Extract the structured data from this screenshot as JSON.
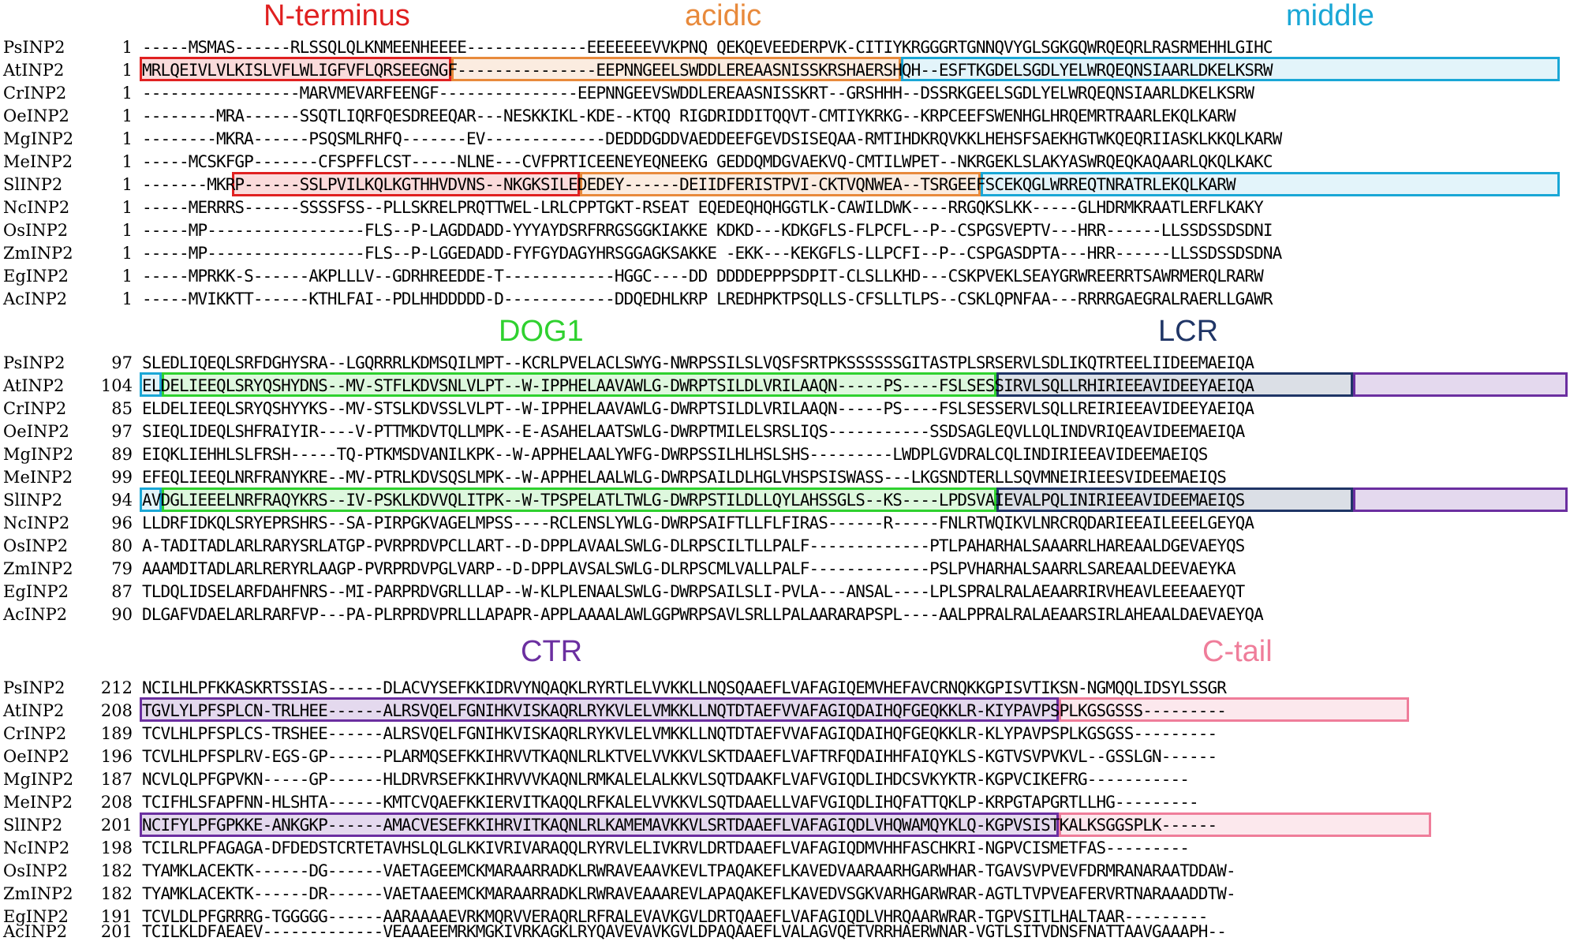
{
  "colors": {
    "N-terminus": "#e02020",
    "acidic": "#e88a3c",
    "middle": "#1aa7d6",
    "DOG1": "#2fd12f",
    "LCR": "#1f3566",
    "CTR": "#6b2fa0",
    "C-tail": "#ef7d9a"
  },
  "blocks": [
    {
      "regions": [
        "N-terminus",
        "acidic",
        "middle"
      ],
      "rows": [
        {
          "name": "PsINP2",
          "pos": "1",
          "seq": "-----MSMAS------RLSSQLQLKNMEENHEEEE-------------EEEEEEEVVKPNQ QEKQEVEEDERPVK-CITIYKRGGGRTGNNQVYGLSGKGQWRQEQRLRASRMEHHLGIHC"
        },
        {
          "name": "AtINP2",
          "pos": "1",
          "seq": "MRLQEIVLVLKISLVFLWLIGFVFLQRSEEGNGF---------------EEPNNGEELSWDDLEREAASNISSKRSHAERSHQH--ESFTKGDELSGDLYELWRQEQNSIAARLDKELKSRW"
        },
        {
          "name": "CrINP2",
          "pos": "1",
          "seq": "-----------------MARVMEVARFEENGF---------------EEPNNGEEVSWDDLEREAASNISSKRT--GRSHHH--DSSRKGEELSGDLYELWRQEQNSIAARLDKELKSRW"
        },
        {
          "name": "OeINP2",
          "pos": "1",
          "seq": "--------MRA------SSQTLIQRFQESDREEQAR---NESKKIKL-KDE--KTQQ RIGDRIDDITQQVT-CMTIYKRKG--KRPCEEFSWENHGLHRQEMRTRAARLEKQLKARW"
        },
        {
          "name": "MgINP2",
          "pos": "1",
          "seq": "--------MKRA------PSQSMLRHFQ-------EV-------------DEDDDGDDVAEDDEEFGEVDSISEQAA-RMTIHDKRQVKKLHEHSFSAEKHGTWKQEQRIIASKLKKQLKARW"
        },
        {
          "name": "MeINP2",
          "pos": "1",
          "seq": "-----MCSKFGP-------CFSPFFLCST-----NLNE---CVFPRTICEENEYEQNEEKG GEDDQMDGVAEKVQ-CMTILWPET--NKRGEKLSLAKYASWRQEQKAQAARLQKQLKAKC"
        },
        {
          "name": "SlINP2",
          "pos": "1",
          "seq": "-------MKRP------SSLPVILKQLKGTHHVDVNS--NKGKSILEDEDEY------DEIIDFERISTPVI-CKTVQNWEA--TSRGEEFSCEKQGLWRREQTNRATRLEKQLKARW"
        },
        {
          "name": "NcINP2",
          "pos": "1",
          "seq": "-----MERRRS------SSSSFSS--PLLSKRELPRQTTWEL-LRLCPPTGKT-RSEAT EQEDEQHQHGGTLK-CAWILDWK----RRGQKSLKK-----GLHDRMKRAATLERFLKAKY"
        },
        {
          "name": "OsINP2",
          "pos": "1",
          "seq": "-----MP-----------------FLS--P-LAGDDADD-YYYAYDSRFRRGSGGKIAKKE KDKD---KDKGFLS-FLPCFL--P--CSPGSVEPTV---HRR------LLSSDSSDSDNI"
        },
        {
          "name": "ZmINP2",
          "pos": "1",
          "seq": "-----MP-----------------FLS--P-LGGEDADD-FYFGYDAGYHRSGGAGKSAKKE -EKK---KEKGFLS-LLPCFI--P--CSPGASDPTA---HRR------LLSSDSSDSDNA"
        },
        {
          "name": "EgINP2",
          "pos": "1",
          "seq": "-----MPRKK-S------AKPLLLV--GDRHREEDDE-T------------HGGC----DD DDDDEPPPSDPIT-CLSLLKHD---CSKPVEKLSEAYGRWREERRTSAWRMERQLRARW"
        },
        {
          "name": "AcINP2",
          "pos": "1",
          "seq": "-----MVIKKTT------KTHLFAI--PDLHHDDDDD-D------------DDQEDHLKRP LREDHPKTPSQLLS-CFSLLTLPS--CSKLQPNFAA---RRRRGAEGRALRAERLLGAWR"
        }
      ]
    },
    {
      "regions": [
        "DOG1",
        "LCR"
      ],
      "rows": [
        {
          "name": "PsINP2",
          "pos": "97",
          "seq": "SLEDLIQEQLSRFDGHYSRA--LGQRRRLKDMSQILMPT--KCRLPVELACLSWYG-NWRPSSILSLVQSFSRTPKSSSSSSGITASTPLSRSERVLSDLIKQTRTEELIIDEEMAEIQA"
        },
        {
          "name": "AtINP2",
          "pos": "104",
          "seq": "ELDELIEEQLSRYQSHYDNS--MV-STFLKDVSNLVLPT--W-IPPHELAAVAWLG-DWRPTSILDLVRILAAQN-----PS----FSLSESSIRVLSQLLRHIRIEEAVIDEEYAEIQA"
        },
        {
          "name": "CrINP2",
          "pos": "85",
          "seq": "ELDELIEEQLSRYQSHYYKS--MV-STSLKDVSSLVLPT--W-IPPHELAAVAWLG-DWRPTSILDLVRILAAQN-----PS----FSLSESSERVLSQLLREIRIEEAVIDEEYAEIQA"
        },
        {
          "name": "OeINP2",
          "pos": "97",
          "seq": "SIEQLIDEQLSHFRAIYIR----V-PTTMKDVTQLLMPK--E-ASAHELAATSWLG-DWRPTMILELSRSLIQS-----------SSDSAGLEQVLLQLINDVRIQEAVIDEEMAEIQA"
        },
        {
          "name": "MgINP2",
          "pos": "89",
          "seq": "EIQKLIEHHLSLFRSH-----TQ-PTKMSDVANILKPK--W-APPHELAALYWFG-DWRPSSILHLHSLSHS---------LWDPLGVDRALCQLINDIRIEEAVIDEEMAEIQS"
        },
        {
          "name": "MeINP2",
          "pos": "99",
          "seq": "EFEQLIEEQLNRFRANYKRE--MV-PTRLKDVSQSLMPK--W-APPHELAALWLG-DWRPSAILDLHGLVHSPSISWASS---LKGSNDTERLLSQVMNEIRIEESVIDEEMAEIQS"
        },
        {
          "name": "SlINP2",
          "pos": "94",
          "seq": "AVDGLIEEELNRFRAQYKRS--IV-PSKLKDVVQLITPK--W-TPSPELATLTWLG-DWRPSTILDLLQYLAHSSGLS--KS----LPDSVAIEVALPQLINIRIEEAVIDEEMAEIQS"
        },
        {
          "name": "NcINP2",
          "pos": "96",
          "seq": "LLDRFIDKQLSRYEPRSHRS--SA-PIRPGKVAGELMPSS----RCLENSLYWLG-DWRPSAIFTLLFLFIRAS------R-----FNLRTWQIKVLNRCRQDARIEEAILEEELGEYQA"
        },
        {
          "name": "OsINP2",
          "pos": "80",
          "seq": "A-TADITADLARLRARYSRLATGP-PVRPRDVPCLLART--D-DPPLAVAALSWLG-DLRPSCILTLLPALF-------------PTLPAHARHALSAAARRLHAREAALDGEVAEYQS"
        },
        {
          "name": "ZmINP2",
          "pos": "79",
          "seq": "AAAMDITADLARLRERYRLAAGP-PVRPRDVPGLVARP--D-DPPLAVSALSWLG-DLRPSCMLVALLPALF-------------PSLPVHARHALSAARRLSAREAALDEEVAEYKA"
        },
        {
          "name": "EgINP2",
          "pos": "87",
          "seq": "TLDQLIDSELARFDAHFNRS--MI-PARPRDVGRLLLAP--W-KLPLENAALSWLG-DWRPSAILSLI-PVLA---ANSAL----LPLSPRALRALAEAARRIRVHEAVLEEEAAEYQT"
        },
        {
          "name": "AcINP2",
          "pos": "90",
          "seq": "DLGAFVDAELARLRARFVP---PA-PLRPRDVPRLLLAPAPR-APPLAAAALAWLGGPWRPSAVLSRLLPALAARARAPSPL----AALPPRALRALAEAARSIRLAHEAALDAEVAEYQA"
        }
      ]
    },
    {
      "regions": [
        "CTR",
        "C-tail"
      ],
      "rows": [
        {
          "name": "PsINP2",
          "pos": "212",
          "seq": "NCILHLPFKKASKRTSSIAS------DLACVYSEFKKIDRVYNQAQKLRYRTLELVVKKLLNQSQAAEFLVAFAGIQEMVHEFAVCRNQKKGPISVTIKSN-NGMQQLIDSYLSSGR"
        },
        {
          "name": "AtINP2",
          "pos": "208",
          "seq": "TGVLYLPFSPLCN-TRLHEE------ALRSVQELFGNIHKVISKAQRLRYKVLELVMKKLLNQTDTAEFVVAFAGIQDAIHQFGEQKKLR-KIYPAVPSPLKGSGSSS---------"
        },
        {
          "name": "CrINP2",
          "pos": "189",
          "seq": "TCVLHLPFSPLCS-TRSHEE------ALRSVQELFGNIHKVISKAQRLRYKVLELVMKKLLNQTDTAEFVVAFAGIQDAIHQFGEQKKLR-KLYPAVPSPLKGSGSS---------"
        },
        {
          "name": "OeINP2",
          "pos": "196",
          "seq": "TCVLHLPFSPLRV-EGS-GP------PLARMQSEFKKIHRVVTKAQNLRLKTVELVVKKVLSKTDAAEFLVAFTRFQDAIHHFAIQYKLS-KGTVSVPVKVL--GSSLGN------"
        },
        {
          "name": "MgINP2",
          "pos": "187",
          "seq": "NCVLQLPFGPVKN-----GP------HLDRVRSEFKKIHRVVVKAQNLRMKALELALKKVLSQTDAAKFLVAFVGIQDLIHDCSVKYKTR-KGPVCIKEFRG-----------"
        },
        {
          "name": "MeINP2",
          "pos": "208",
          "seq": "TCIFHLSFAPFNN-HLSHTA------KMTCVQAEFKKIERVITKAQQLRFKALELVVKKVLSQTDAAELLVAFVGIQDLIHQFATTQKLP-KRPGTAPGRTLLHG---------"
        },
        {
          "name": "SlINP2",
          "pos": "201",
          "seq": "NCIFYLPFGPKKE-ANKGKP------AMACVESEFKKIHRVITKAQNLRLKAMEMAVKKVLSRTDAAEFLVAFAGIQDLVHQWAMQYKLQ-KGPVSISTKALKSGGSPLK------"
        },
        {
          "name": "NcINP2",
          "pos": "198",
          "seq": "TCILRLPFAGAGA-DFDEDSTCRTETAVHSLQLGLKKIVRIVARAQQLRYRVLELIVKRVLDRTDAAEFLVAFAGIQDMVHHFASCHKRI-NGPVCISMETFAS---------"
        },
        {
          "name": "OsINP2",
          "pos": "182",
          "seq": "TYAMKLACEKTK------DG------VAETAGEEMCKMARAARRADKLRWRAVEAAVKEVLTPAQAKEFLKAVEDVAARAARHGARWHAR-TGAVSVPVEVFDRMRANARAATDDAW-"
        },
        {
          "name": "ZmINP2",
          "pos": "182",
          "seq": "TYAMKLACEKTK------DR------VAETAAEEMCKMARAARRADKLRWRAVEAAAREVLAPAQAKEFLKAVEDVSGKVARHGARWRAR-AGTLTVPVEAFERVRTNARAAADDTW-"
        },
        {
          "name": "EgINP2",
          "pos": "191",
          "seq": "TCVLDLPFGRRRG-TGGGGG------AARAAAAEVRKMQRVVERAQRLRFRALEVAVKGVLDRTQAAEFLVAFAGIQDLVHRQAARWRAR-TGPVSITLHALTAAR---------"
        },
        {
          "name": "AcINP2",
          "pos": "201",
          "seq": "TCILKLDFAEAEV-------------VEAAAEEMRKMGKIVRKAGKLRYQAVEVAVKGVLDPAQAAEFLVALAGVQETVRRHAERWNAR-VGTLSITVDNSFNATTAAVGAAAPH--"
        }
      ]
    }
  ]
}
